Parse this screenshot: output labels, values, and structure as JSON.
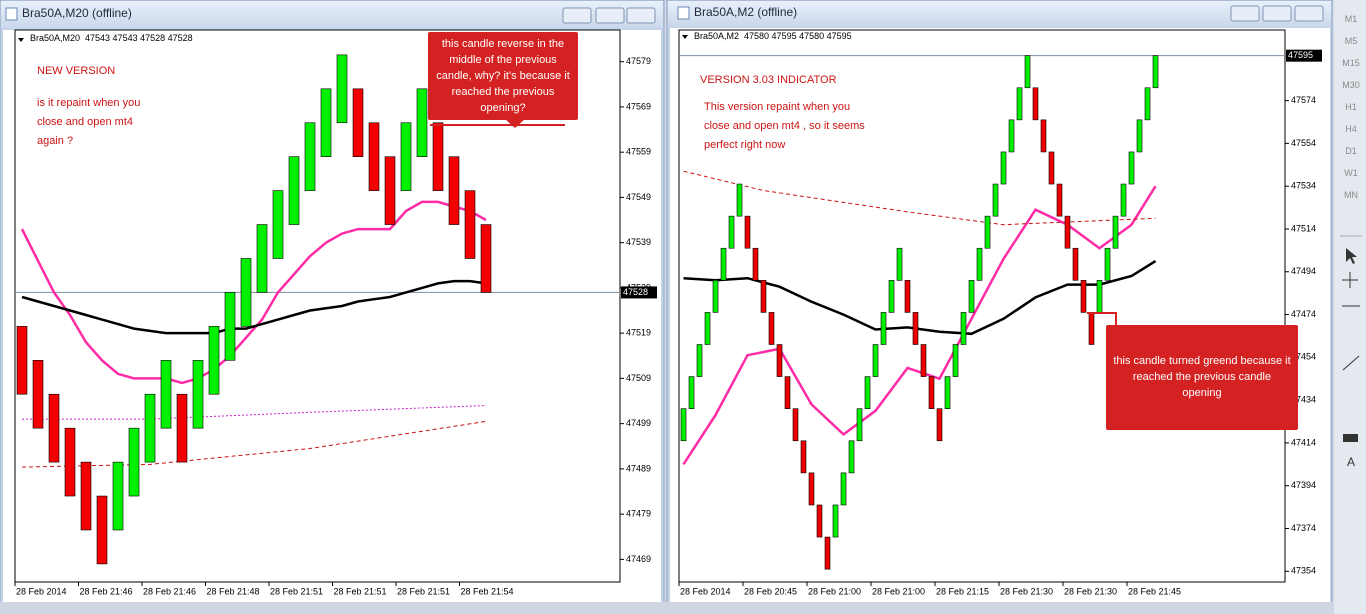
{
  "toolbar": [
    "M1",
    "M5",
    "M15",
    "M30",
    "H1",
    "H4",
    "D1",
    "W1",
    "MN"
  ],
  "chart_data": [
    {
      "type": "candlestick",
      "title": "Bra50A,M20 (offline)",
      "header": "Bra50A,M20  47543 47543 47528 47528",
      "notes": [
        "NEW VERSION",
        "is it repaint when you close and open mt4 again ?"
      ],
      "callout": "this candle reverse in the middle of the previous candle, why? it's because it reached the previous opening?",
      "open": [
        47520.5,
        47513,
        47505.5,
        47498,
        47490.5,
        47483,
        47475.5,
        47483,
        47490.5,
        47498,
        47505.5,
        47498,
        47505.5,
        47513,
        47520.5,
        47528,
        47535.5,
        47543,
        47550.5,
        47558,
        47565.5,
        47573,
        47565.5,
        47558,
        47550.5,
        47558,
        47565.5,
        47558,
        47550.5,
        47543
      ],
      "close": [
        47505.5,
        47498,
        47490.5,
        47483,
        47475.5,
        47468,
        47490.5,
        47498,
        47505.5,
        47513,
        47490.5,
        47513,
        47520.5,
        47528,
        47535.5,
        47543,
        47550.5,
        47558,
        47565.5,
        47573,
        47580.5,
        47558,
        47550.5,
        47543,
        47565.5,
        47573,
        47550.5,
        47543,
        47535.5,
        47528
      ],
      "up_color": "#00f000",
      "down_color": "#f00000",
      "ylim": [
        47464,
        47586
      ],
      "yticks": [
        47579,
        47569,
        47559,
        47549,
        47539,
        47529,
        47519,
        47509,
        47499,
        47489,
        47479,
        47469
      ],
      "current_price": 47528,
      "time_labels": [
        "28 Feb 2014",
        "28 Feb 21:46",
        "28 Feb 21:46",
        "28 Feb 21:48",
        "28 Feb 21:51",
        "28 Feb 21:51",
        "28 Feb 21:51",
        "28 Feb 21:54"
      ],
      "indicators": [
        {
          "color": "#ff2aa6",
          "style": "solid",
          "x": [
            0,
            1,
            2,
            3,
            4,
            5,
            6,
            7,
            8,
            9,
            10,
            11,
            12,
            13,
            14,
            15,
            16,
            17,
            18,
            19,
            20,
            21,
            22,
            23,
            24,
            25,
            26,
            27,
            28,
            29
          ],
          "values": [
            47542,
            47535,
            47528,
            47523,
            47517,
            47513,
            47510,
            47509,
            47509,
            47509,
            47508,
            47509,
            47511,
            47514,
            47518,
            47522,
            47528,
            47532,
            47536,
            47539,
            47541,
            47542,
            47542,
            47542,
            47546,
            47548,
            47548,
            47547,
            47546,
            47544
          ]
        },
        {
          "color": "#000000",
          "style": "solid",
          "x": [
            0,
            1,
            2,
            3,
            4,
            5,
            6,
            7,
            8,
            9,
            10,
            11,
            12,
            13,
            14,
            15,
            16,
            17,
            18,
            19,
            20,
            21,
            22,
            23,
            24,
            25,
            26,
            27,
            28,
            29
          ],
          "values": [
            47527,
            47526,
            47525,
            47524,
            47523,
            47522,
            47521,
            47520,
            47519.5,
            47519,
            47519,
            47519,
            47519,
            47520,
            47520,
            47521,
            47522,
            47523,
            47524,
            47524.5,
            47525,
            47526,
            47526.5,
            47527,
            47528,
            47529,
            47530,
            47530.5,
            47530.5,
            47530
          ]
        },
        {
          "color": "#cc1111",
          "style": "dashed",
          "x": [
            0,
            8,
            18,
            29
          ],
          "values": [
            47489.4,
            47490,
            47493.5,
            47499.5
          ]
        },
        {
          "color": "#cc22cc",
          "style": "dotted",
          "x": [
            0,
            8,
            18,
            29
          ],
          "values": [
            47500,
            47500,
            47501.5,
            47503
          ]
        }
      ]
    },
    {
      "type": "candlestick",
      "title": "Bra50A,M2 (offline)",
      "header": "Bra50A,M2  47580 47595 47580 47595",
      "notes": [
        "VERSION 3.03 INDICATOR",
        "This version repaint when you close and open mt4 , so it seems perfect right now"
      ],
      "callout": "this candle turned greend because it reached the previous candle opening",
      "open": [
        47415,
        47430,
        47445,
        47460,
        47475,
        47490,
        47505,
        47520,
        47520,
        47505,
        47490,
        47475,
        47460,
        47445,
        47430,
        47415,
        47400,
        47385,
        47370,
        47370,
        47385,
        47400,
        47415,
        47430,
        47445,
        47460,
        47475,
        47490,
        47490,
        47475,
        47460,
        47445,
        47430,
        47430,
        47445,
        47460,
        47475,
        47490,
        47505,
        47520,
        47535,
        47550,
        47565,
        47580,
        47580,
        47565,
        47550,
        47535,
        47520,
        47505,
        47490,
        47475,
        47475,
        47490,
        47505,
        47520,
        47535,
        47550,
        47565,
        47580
      ],
      "close": [
        47430,
        47445,
        47460,
        47475,
        47490,
        47505,
        47520,
        47535,
        47505,
        47490,
        47475,
        47460,
        47445,
        47430,
        47415,
        47400,
        47385,
        47370,
        47355,
        47385,
        47400,
        47415,
        47430,
        47445,
        47460,
        47475,
        47490,
        47505,
        47475,
        47460,
        47445,
        47430,
        47415,
        47445,
        47460,
        47475,
        47490,
        47505,
        47520,
        47535,
        47550,
        47565,
        47580,
        47595,
        47565,
        47550,
        47535,
        47520,
        47505,
        47490,
        47475,
        47460,
        47490,
        47505,
        47520,
        47535,
        47550,
        47565,
        47580,
        47595
      ],
      "up_color": "#00f000",
      "down_color": "#f00000",
      "ylim": [
        47349,
        47607
      ],
      "yticks": [
        47574,
        47554,
        47534,
        47514,
        47494,
        47474,
        47454,
        47434,
        47414,
        47394,
        47374,
        47354
      ],
      "current_price": 47595,
      "time_labels": [
        "28 Feb 2014",
        "28 Feb 20:45",
        "28 Feb 21:00",
        "28 Feb 21:00",
        "28 Feb 21:15",
        "28 Feb 21:30",
        "28 Feb 21:30",
        "28 Feb 21:45"
      ],
      "indicators": [
        {
          "color": "#ff2aa6",
          "style": "solid",
          "x": [
            0,
            4,
            8,
            12,
            16,
            20,
            24,
            28,
            32,
            36,
            40,
            44,
            48,
            52,
            56,
            59
          ],
          "values": [
            47404,
            47427,
            47455,
            47458,
            47432,
            47418,
            47429,
            47449,
            47444,
            47472,
            47500,
            47523,
            47516,
            47505,
            47516,
            47534
          ]
        },
        {
          "color": "#000000",
          "style": "solid",
          "x": [
            0,
            4,
            8,
            12,
            16,
            20,
            24,
            28,
            32,
            36,
            40,
            44,
            48,
            52,
            56,
            59
          ],
          "values": [
            47491,
            47490,
            47491,
            47487,
            47480,
            47474,
            47467,
            47468,
            47466,
            47465,
            47472,
            47482,
            47488,
            47488,
            47492,
            47499
          ]
        },
        {
          "color": "#cc1111",
          "style": "dashed",
          "x": [
            0,
            10,
            28,
            40,
            59
          ],
          "values": [
            47541,
            47532,
            47522,
            47516,
            47519
          ]
        }
      ]
    }
  ]
}
